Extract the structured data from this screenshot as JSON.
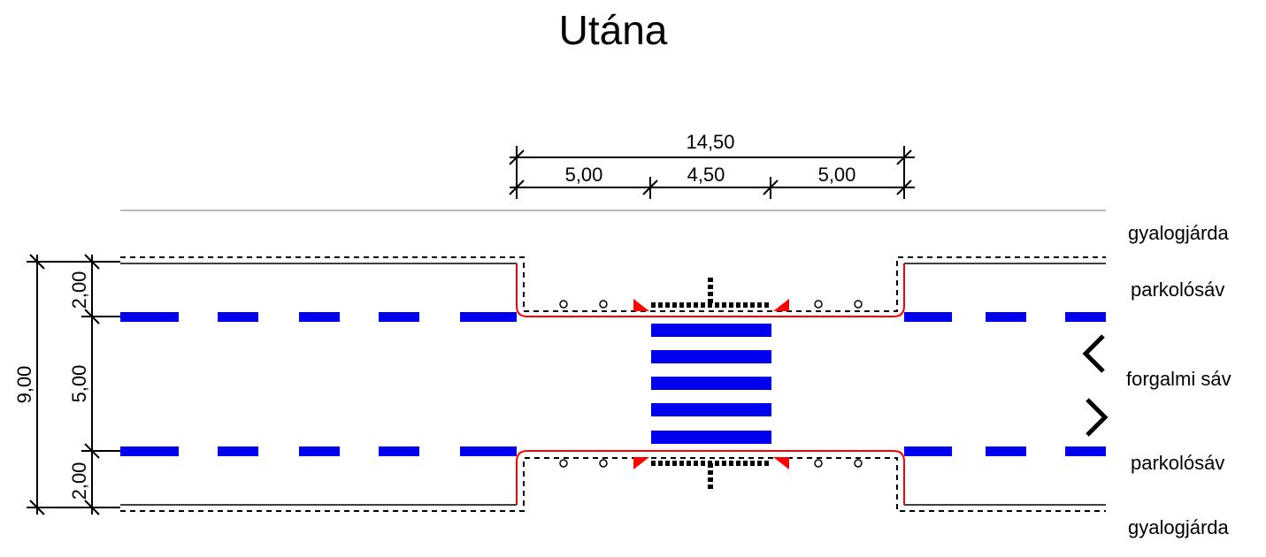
{
  "title": "Utána",
  "dimensions": {
    "total_width": "14,50",
    "left_segment": "5,00",
    "middle_segment": "4,50",
    "right_segment": "5,00",
    "total_height": "9,00",
    "top_parking": "2,00",
    "traffic_lane": "5,00",
    "bottom_parking": "2,00"
  },
  "labels": {
    "sidewalk_top": "gyalogjárda",
    "parking_top": "parkolósáv",
    "traffic_lane": "forgalmi sáv",
    "parking_bottom": "parkolósáv",
    "sidewalk_bottom": "gyalogjárda"
  },
  "colors": {
    "lane_marking": "#0000ee",
    "curb_line": "#ff0000",
    "line": "#000000",
    "guide_line": "#bbbbbb"
  },
  "icons": {
    "direction_left": "chevron-left-icon",
    "direction_right": "chevron-right-icon"
  }
}
